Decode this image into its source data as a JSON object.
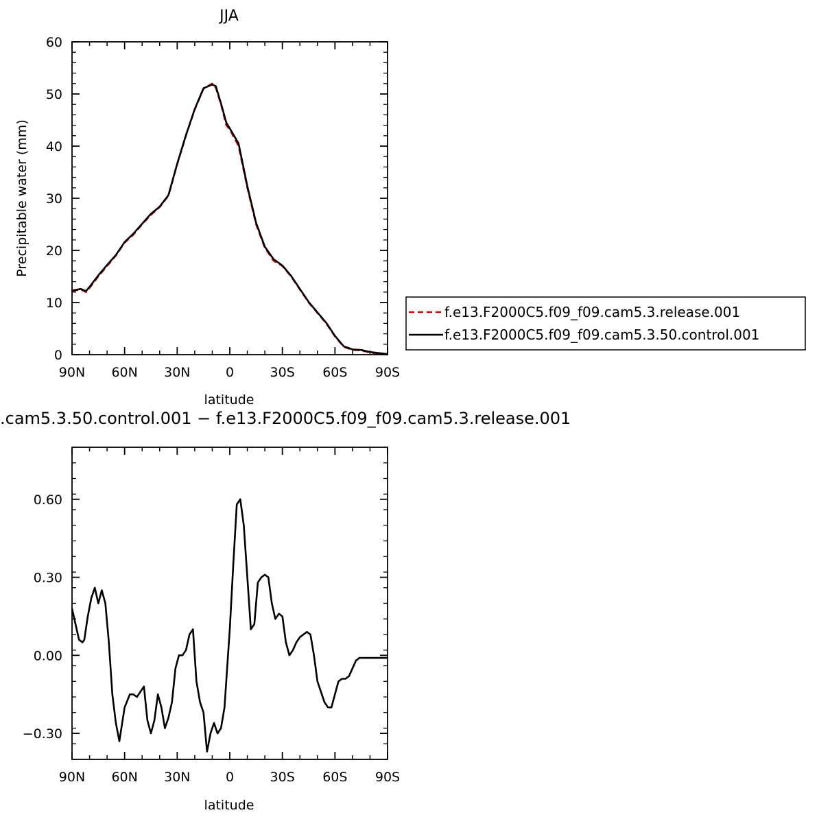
{
  "chart_data": [
    {
      "type": "line",
      "title": "JJA",
      "xlabel": "latitude",
      "ylabel": "Precipitable water (mm)",
      "xlim": [
        90,
        -90
      ],
      "ylim": [
        0,
        60
      ],
      "x_ticks": [
        90,
        60,
        30,
        0,
        -30,
        -60,
        -90
      ],
      "x_tick_labels": [
        "90N",
        "60N",
        "30N",
        "0",
        "30S",
        "60S",
        "90S"
      ],
      "y_ticks": [
        0,
        10,
        20,
        30,
        40,
        50,
        60
      ],
      "y_tick_labels": [
        "0",
        "10",
        "20",
        "30",
        "40",
        "50",
        "60"
      ],
      "legend_position": "right",
      "series": [
        {
          "name": "f.e13.F2000C5.f09_f09.cam5.3.release.001",
          "color": "#e00000",
          "style": "dashed",
          "x": [
            90,
            85,
            82,
            80,
            75,
            70,
            65,
            60,
            55,
            50,
            45,
            40,
            35,
            30,
            25,
            20,
            15,
            10,
            8,
            5,
            2,
            0,
            -5,
            -10,
            -15,
            -20,
            -25,
            -30,
            -35,
            -40,
            -45,
            -50,
            -55,
            -60,
            -65,
            -70,
            -75,
            -80,
            -85,
            -90
          ],
          "y": [
            12.2,
            12.5,
            12.0,
            12.8,
            15.0,
            17.0,
            19.0,
            21.5,
            23.0,
            25.0,
            26.8,
            28.3,
            30.5,
            36.5,
            42.0,
            47.0,
            51.0,
            52.0,
            51.2,
            48.0,
            44.0,
            43.2,
            40.0,
            32.0,
            25.0,
            20.5,
            18.0,
            17.0,
            15.0,
            12.5,
            10.0,
            8.0,
            6.0,
            3.5,
            1.5,
            0.9,
            0.8,
            0.4,
            0.2,
            0.0
          ]
        },
        {
          "name": "f.e13.F2000C5.f09_f09.cam5.3.50.control.001",
          "color": "#000000",
          "style": "solid",
          "x": [
            90,
            85,
            82,
            80,
            75,
            70,
            65,
            60,
            55,
            50,
            45,
            40,
            35,
            30,
            25,
            20,
            15,
            10,
            8,
            5,
            2,
            0,
            -5,
            -10,
            -15,
            -20,
            -25,
            -30,
            -35,
            -40,
            -45,
            -50,
            -55,
            -60,
            -65,
            -70,
            -75,
            -80,
            -85,
            -90
          ],
          "y": [
            12.3,
            12.6,
            12.2,
            13.0,
            15.2,
            17.2,
            19.1,
            21.6,
            23.2,
            25.1,
            27.0,
            28.4,
            30.6,
            36.6,
            42.1,
            47.1,
            51.1,
            51.8,
            51.5,
            48.2,
            44.5,
            43.4,
            40.5,
            32.3,
            25.3,
            20.7,
            18.3,
            17.1,
            15.1,
            12.6,
            10.1,
            8.1,
            6.1,
            3.6,
            1.6,
            1.0,
            0.9,
            0.5,
            0.3,
            0.1
          ]
        }
      ]
    },
    {
      "type": "line",
      "title": ".cam5.3.50.control.001 − f.e13.F2000C5.f09_f09.cam5.3.release.001",
      "xlabel": "latitude",
      "ylabel": "",
      "xlim": [
        90,
        -90
      ],
      "ylim": [
        -0.4,
        0.8
      ],
      "x_ticks": [
        90,
        60,
        30,
        0,
        -30,
        -60,
        -90
      ],
      "x_tick_labels": [
        "90N",
        "60N",
        "30N",
        "0",
        "30S",
        "60S",
        "90S"
      ],
      "y_ticks": [
        0.6,
        0.3,
        0.0,
        -0.3
      ],
      "y_tick_labels": [
        "0.60",
        "0.30",
        "0.00",
        "−0.30"
      ],
      "series": [
        {
          "color": "#000000",
          "style": "solid",
          "x": [
            90,
            88,
            86,
            84,
            83,
            81,
            79,
            77,
            75,
            73,
            71,
            69,
            67,
            65,
            63,
            60,
            57,
            55,
            53,
            51,
            49,
            47,
            45,
            43,
            41,
            39,
            37,
            35,
            33,
            31,
            29,
            27,
            25,
            23,
            21,
            19,
            17,
            15,
            13,
            11,
            9,
            7,
            5,
            3,
            1,
            0,
            -2,
            -4,
            -6,
            -8,
            -9,
            -10,
            -12,
            -14,
            -16,
            -18,
            -20,
            -22,
            -24,
            -26,
            -28,
            -30,
            -32,
            -34,
            -36,
            -38,
            -40,
            -42,
            -44,
            -46,
            -48,
            -50,
            -52,
            -54,
            -56,
            -58,
            -60,
            -62,
            -64,
            -66,
            -68,
            -70,
            -72,
            -74,
            -76,
            -78,
            -80,
            -82,
            -84,
            -86,
            -88,
            -90
          ],
          "y": [
            0.18,
            0.12,
            0.06,
            0.05,
            0.06,
            0.15,
            0.22,
            0.26,
            0.2,
            0.25,
            0.2,
            0.05,
            -0.15,
            -0.26,
            -0.33,
            -0.2,
            -0.15,
            -0.15,
            -0.16,
            -0.14,
            -0.12,
            -0.25,
            -0.3,
            -0.25,
            -0.15,
            -0.2,
            -0.28,
            -0.24,
            -0.18,
            -0.05,
            0.0,
            0.0,
            0.02,
            0.08,
            0.1,
            -0.1,
            -0.18,
            -0.22,
            -0.37,
            -0.3,
            -0.26,
            -0.3,
            -0.28,
            -0.2,
            0.0,
            0.1,
            0.35,
            0.58,
            0.6,
            0.5,
            0.4,
            0.3,
            0.1,
            0.12,
            0.28,
            0.3,
            0.31,
            0.3,
            0.2,
            0.14,
            0.16,
            0.15,
            0.05,
            0.0,
            0.02,
            0.05,
            0.07,
            0.08,
            0.09,
            0.08,
            0.0,
            -0.1,
            -0.14,
            -0.18,
            -0.2,
            -0.2,
            -0.15,
            -0.1,
            -0.09,
            -0.09,
            -0.08,
            -0.05,
            -0.02,
            -0.01,
            -0.01,
            -0.01,
            -0.01,
            -0.01,
            -0.01,
            -0.01,
            -0.01,
            -0.01
          ]
        }
      ]
    }
  ]
}
